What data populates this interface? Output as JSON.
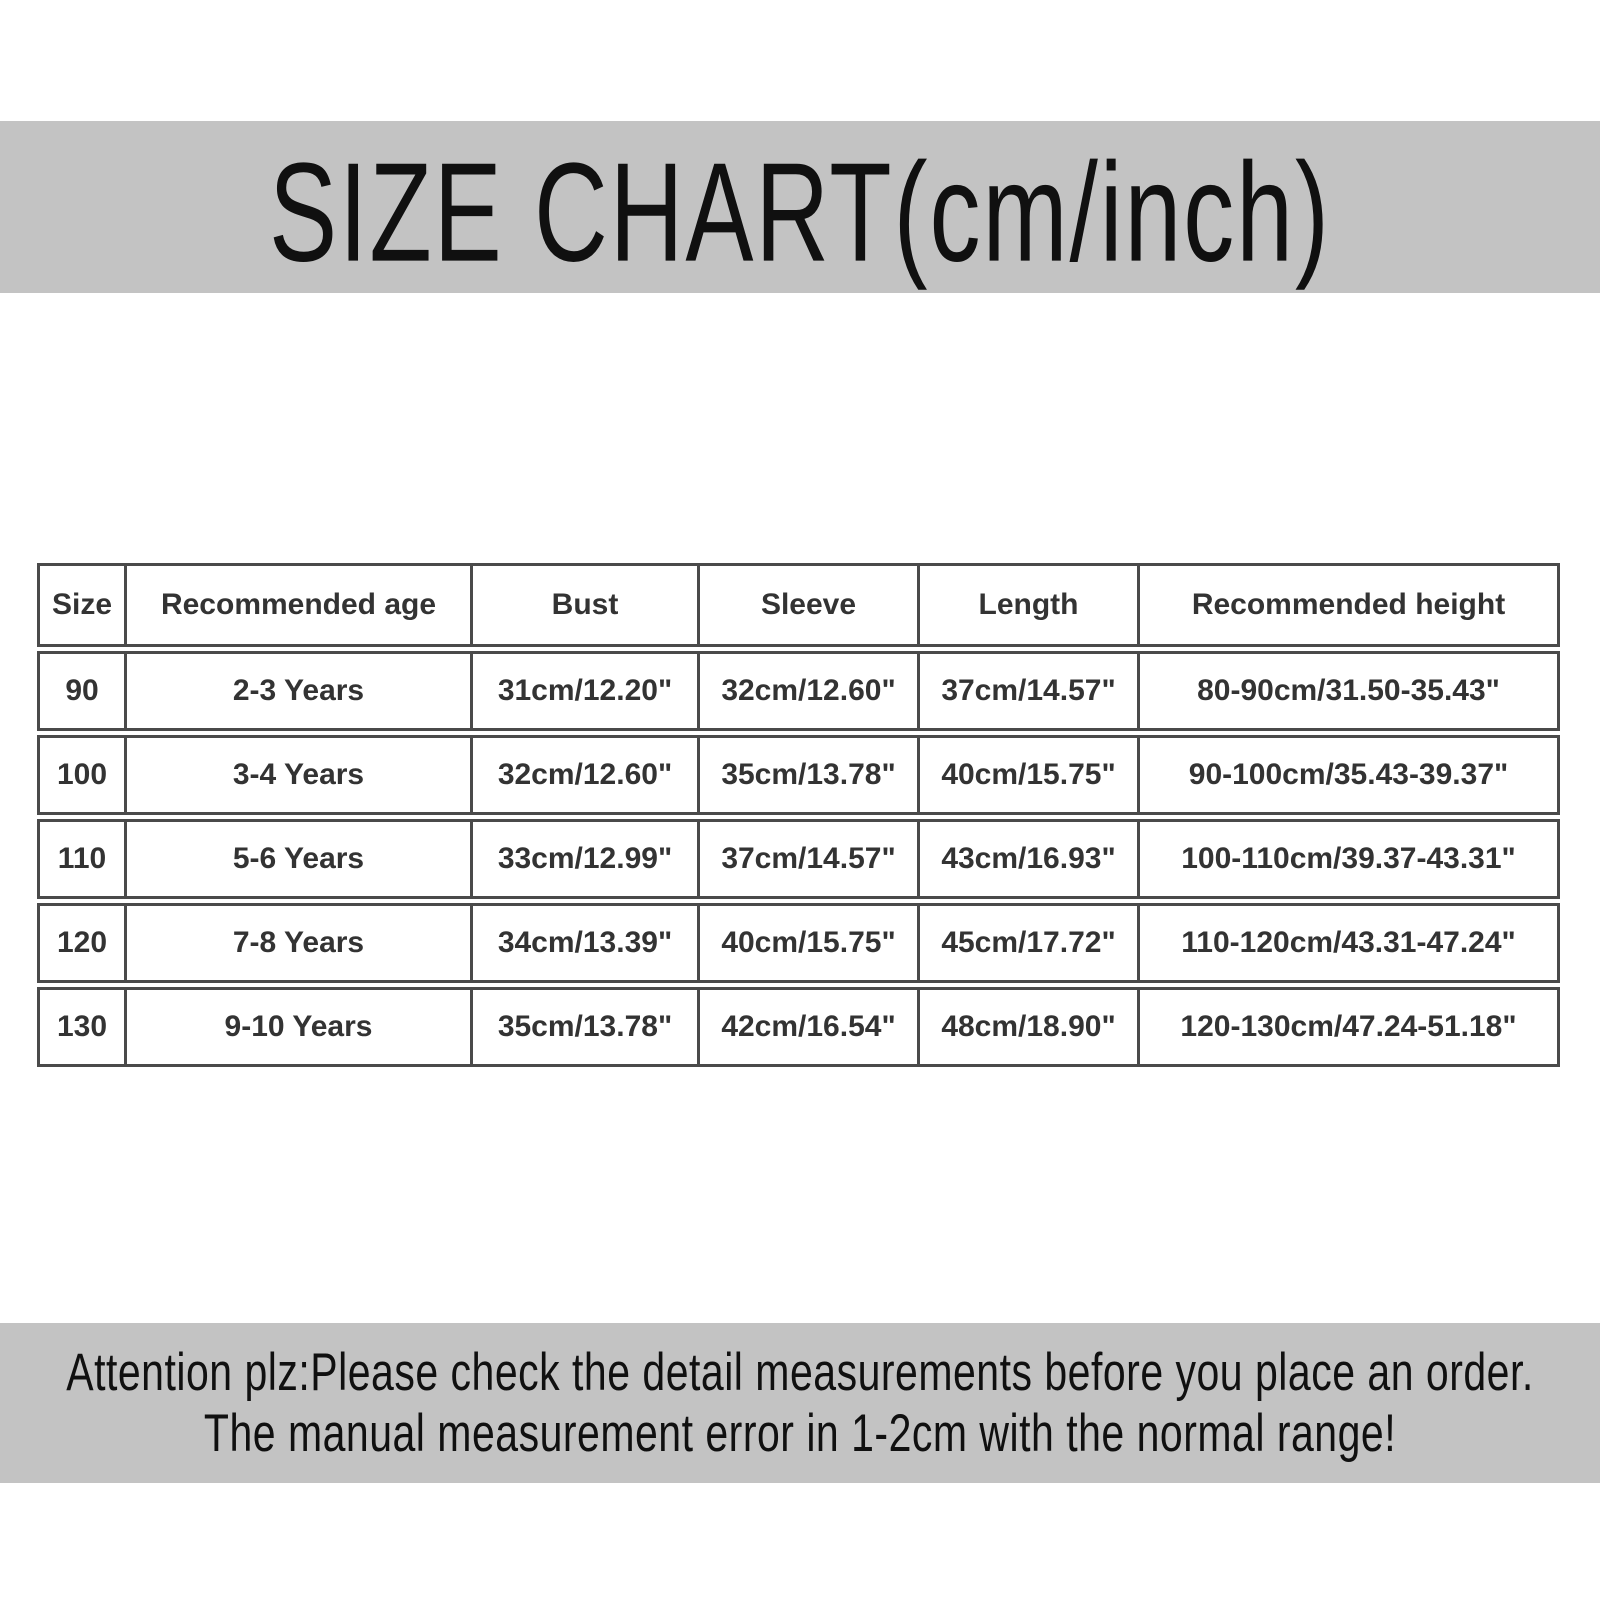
{
  "title": "SIZE CHART(cm/inch)",
  "table": {
    "headers": [
      "Size",
      "Recommended age",
      "Bust",
      "Sleeve",
      "Length",
      "Recommended height"
    ],
    "rows": [
      [
        "90",
        "2-3 Years",
        "31cm/12.20\"",
        "32cm/12.60\"",
        "37cm/14.57\"",
        "80-90cm/31.50-35.43\""
      ],
      [
        "100",
        "3-4 Years",
        "32cm/12.60\"",
        "35cm/13.78\"",
        "40cm/15.75\"",
        "90-100cm/35.43-39.37\""
      ],
      [
        "110",
        "5-6 Years",
        "33cm/12.99\"",
        "37cm/14.57\"",
        "43cm/16.93\"",
        "100-110cm/39.37-43.31\""
      ],
      [
        "120",
        "7-8 Years",
        "34cm/13.39\"",
        "40cm/15.75\"",
        "45cm/17.72\"",
        "110-120cm/43.31-47.24\""
      ],
      [
        "130",
        "9-10 Years",
        "35cm/13.78\"",
        "42cm/16.54\"",
        "48cm/18.90\"",
        "120-130cm/47.24-51.18\""
      ]
    ]
  },
  "footer": {
    "line1": "Attention plz:Please check the detail measurements before you place an order.",
    "line2": "The manual measurement error in 1-2cm with the normal range!"
  },
  "colors": {
    "band_background": "#c3c3c3",
    "table_border": "#4a4a4a",
    "title_text": "#101010",
    "cell_text": "#333333"
  }
}
